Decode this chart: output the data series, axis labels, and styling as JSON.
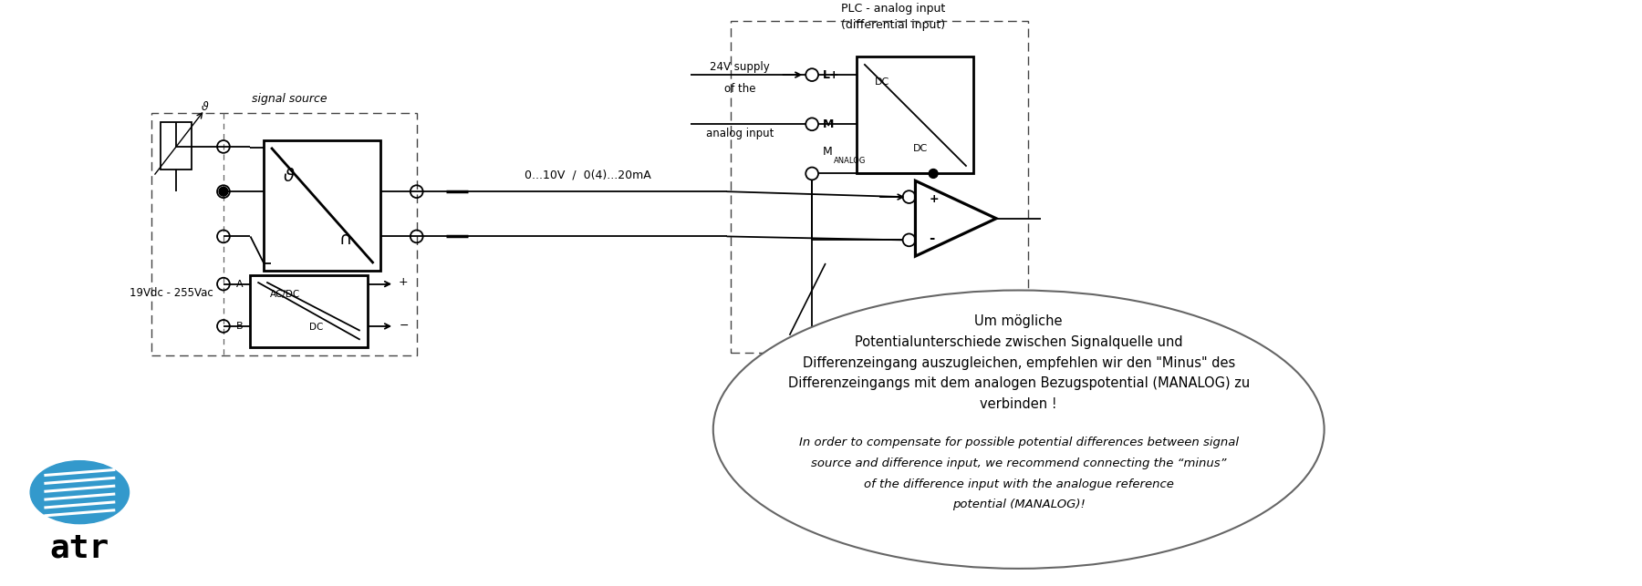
{
  "bg_color": "#ffffff",
  "fig_width": 18.0,
  "fig_height": 6.43,
  "signal_source_label": "signal source",
  "voltage_label": "19Vdc - 255Vac",
  "supply_label_line1": "24V supply",
  "supply_label_line2": "of the",
  "supply_label_line3": "analog input",
  "signal_label": "0...10V  /  0(4)...20mA",
  "plc_label_line1": "PLC - analog input",
  "plc_label_line2": "(differential input)",
  "L_plus_label": "L+",
  "M_label": "M",
  "ANALOG_sub": "ANALOG",
  "plus_label": "+",
  "minus_label": "-",
  "A_label": "A",
  "B_label": "B",
  "DC_label": "DC",
  "AC_DC_label": "AC/DC",
  "bubble_text_de_line1": "Um mögliche",
  "bubble_text_de_line2": "Potentialunterschiede zwischen Signalquelle und",
  "bubble_text_de_line3": "Differenzeingang auszugleichen, empfehlen wir den \"Minus\" des",
  "bubble_text_de_line4a": "Differenzeingangs mit dem analogen Bezugspotential (M",
  "bubble_text_de_line4b": "ANALOG",
  "bubble_text_de_line4c": ") zu",
  "bubble_text_de_line5": "verbinden !",
  "bubble_text_en_line1": "In order to compensate for possible potential differences between signal",
  "bubble_text_en_line2": "source and difference input, we recommend connecting the “minus”",
  "bubble_text_en_line3": "of the difference input with the analogue reference",
  "bubble_text_en_line4a": "potential (M",
  "bubble_text_en_line4b": "ANALOG",
  "bubble_text_en_line4c": ")!"
}
